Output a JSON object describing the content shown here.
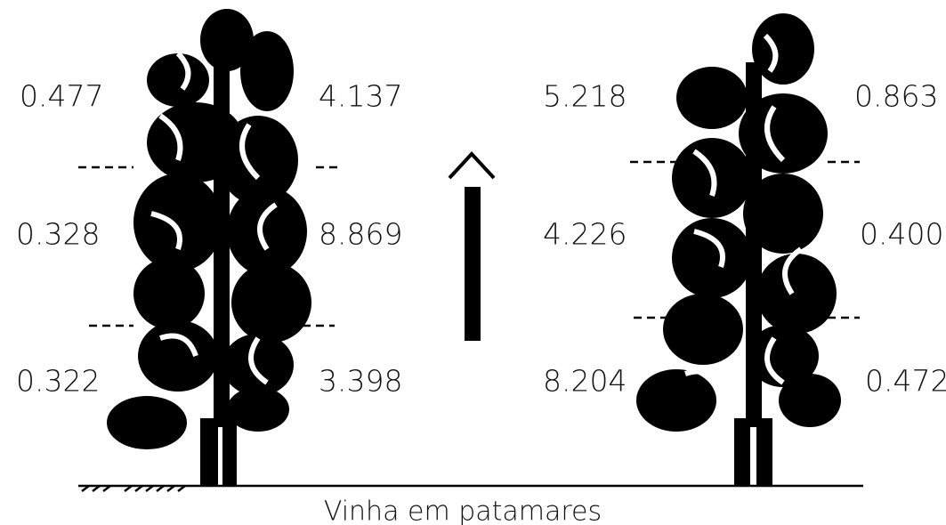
{
  "left_vine": {
    "left_labels": [
      "0.477",
      "0.328",
      "0.322"
    ],
    "right_labels": [
      "4.137",
      "8.869",
      "3.398"
    ]
  },
  "right_vine": {
    "left_labels": [
      "5.218",
      "4.226",
      "8.204"
    ],
    "right_labels": [
      "0.863",
      "0.400",
      "0.472"
    ]
  },
  "caption": "Vinha em patamares"
}
